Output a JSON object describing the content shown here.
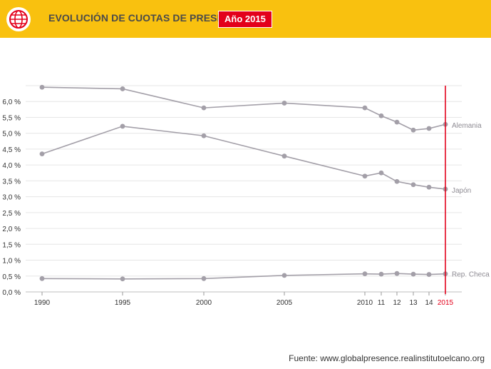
{
  "header": {
    "logo_icon": "globe-icon",
    "title": "EVOLUCIÓN DE CUOTAS DE PRESENCIA",
    "year_badge": "Año 2015"
  },
  "colors": {
    "header_bg": "#f9c10f",
    "accent_red": "#e3001b",
    "series_gray": "#a39fa8",
    "grid": "#e6e6e6",
    "axis_text": "#333333"
  },
  "chart_data": {
    "type": "line",
    "title": "",
    "xlabel": "",
    "ylabel": "",
    "x": [
      1990,
      1995,
      2000,
      2005,
      2010,
      2011,
      2012,
      2013,
      2014,
      2015
    ],
    "x_tick_labels": [
      "1990",
      "1995",
      "2000",
      "2005",
      "2010",
      "11",
      "12",
      "13",
      "14",
      "2015"
    ],
    "highlight_x": 2015,
    "ylim": [
      0,
      6.5
    ],
    "y_ticks": [
      0,
      0.5,
      1.0,
      1.5,
      2.0,
      2.5,
      3.0,
      3.5,
      4.0,
      4.5,
      5.0,
      5.5,
      6.0
    ],
    "y_tick_labels": [
      "0,0 %",
      "0,5 %",
      "1,0 %",
      "1,5 %",
      "2,0 %",
      "2,5 %",
      "3,0 %",
      "3,5 %",
      "4,0 %",
      "4,5 %",
      "5,0 %",
      "5,5 %",
      "6,0 %"
    ],
    "grid": true,
    "series": [
      {
        "name": "Alemania",
        "values": [
          6.45,
          6.4,
          5.8,
          5.95,
          5.8,
          5.55,
          5.35,
          5.1,
          5.15,
          5.28
        ]
      },
      {
        "name": "Japón",
        "values": [
          4.35,
          5.22,
          4.92,
          4.28,
          3.65,
          3.75,
          3.48,
          3.38,
          3.3,
          3.24
        ]
      },
      {
        "name": "Rep. Checa",
        "values": [
          0.42,
          0.41,
          0.42,
          0.52,
          0.57,
          0.56,
          0.58,
          0.56,
          0.55,
          0.57
        ]
      }
    ]
  },
  "footer": {
    "source": "Fuente: www.globalpresence.realinstitutoelcano.org"
  }
}
